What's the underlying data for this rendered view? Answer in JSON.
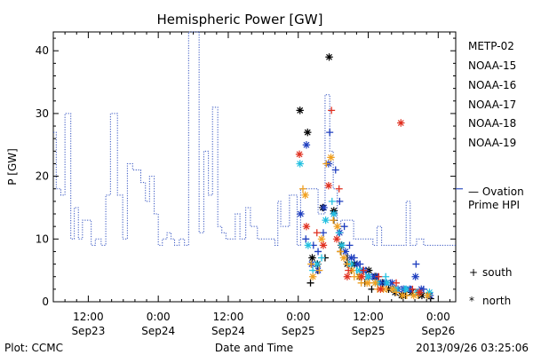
{
  "chart_data": {
    "type": "scatter",
    "title": "Hemispheric Power [GW]",
    "xlabel": "Date and Time",
    "ylabel": "P [GW]",
    "footer_left": "Plot: CCMC",
    "footer_right": "2013/09/26 03:25:06",
    "x_units": "hours since 2013-09-22 00:00 UT",
    "xlim": [
      6,
      75
    ],
    "ylim": [
      0,
      43
    ],
    "y_ticks": [
      0,
      10,
      20,
      30,
      40
    ],
    "x_ticks": [
      {
        "x": 12,
        "time": "12:00",
        "date": "Sep23"
      },
      {
        "x": 24,
        "time": "0:00",
        "date": "Sep24"
      },
      {
        "x": 36,
        "time": "12:00",
        "date": "Sep24"
      },
      {
        "x": 48,
        "time": "0:00",
        "date": "Sep25"
      },
      {
        "x": 60,
        "time": "12:00",
        "date": "Sep25"
      },
      {
        "x": 72,
        "time": "0:00",
        "date": "Sep26"
      }
    ],
    "legend": {
      "placement": "right",
      "satellites": [
        {
          "name": "METP-02",
          "color": "#000000"
        },
        {
          "name": "NOAA-15",
          "color": "#1f3fbf"
        },
        {
          "name": "NOAA-16",
          "color": "#22c0e0"
        },
        {
          "name": "NOAA-17",
          "color": "#22d68a"
        },
        {
          "name": "NOAA-18",
          "color": "#f0a020"
        },
        {
          "name": "NOAA-19",
          "color": "#e03020"
        }
      ],
      "ovation": {
        "label_line1": "— Ovation",
        "label_line2": "Prime HPI",
        "value": 18,
        "color": "#3050c0"
      },
      "markers": [
        {
          "symbol": "+",
          "label": "south"
        },
        {
          "symbol": "*",
          "label": "north"
        }
      ]
    },
    "ovation_series": {
      "name": "Ovation Prime HPI",
      "points": [
        [
          6,
          27
        ],
        [
          6.5,
          18
        ],
        [
          7.3,
          17
        ],
        [
          8,
          30
        ],
        [
          9,
          10
        ],
        [
          9.6,
          15
        ],
        [
          10.3,
          10
        ],
        [
          11,
          13
        ],
        [
          12.5,
          9
        ],
        [
          13.2,
          10
        ],
        [
          14.2,
          9
        ],
        [
          15,
          17
        ],
        [
          15.8,
          30
        ],
        [
          17,
          17
        ],
        [
          17.9,
          10
        ],
        [
          18.7,
          22
        ],
        [
          19.6,
          21
        ],
        [
          21,
          19
        ],
        [
          21.8,
          16
        ],
        [
          22.5,
          20
        ],
        [
          23.3,
          14
        ],
        [
          24,
          9
        ],
        [
          24.7,
          10
        ],
        [
          25.5,
          11
        ],
        [
          26.2,
          10
        ],
        [
          26.8,
          9
        ],
        [
          27.6,
          10
        ],
        [
          28.5,
          9
        ],
        [
          29.2,
          43
        ],
        [
          31,
          11
        ],
        [
          31.8,
          24
        ],
        [
          32.6,
          17
        ],
        [
          33.3,
          31
        ],
        [
          34.2,
          12
        ],
        [
          34.9,
          11
        ],
        [
          35.6,
          10
        ],
        [
          37.2,
          14
        ],
        [
          38,
          10
        ],
        [
          39,
          15
        ],
        [
          39.8,
          12
        ],
        [
          41,
          10
        ],
        [
          43,
          10
        ],
        [
          44,
          9
        ],
        [
          44.5,
          16
        ],
        [
          45,
          12
        ],
        [
          46.5,
          17
        ],
        [
          47.8,
          9
        ],
        [
          48.4,
          18
        ],
        [
          51.4,
          14
        ],
        [
          52.6,
          33
        ],
        [
          53.4,
          24
        ],
        [
          54,
          18
        ],
        [
          54.7,
          11
        ],
        [
          55.3,
          13
        ],
        [
          57.5,
          10
        ],
        [
          60.8,
          9
        ],
        [
          61.5,
          12
        ],
        [
          62.3,
          9
        ],
        [
          66.5,
          16
        ],
        [
          67.2,
          9
        ],
        [
          68.3,
          10
        ],
        [
          69.5,
          9
        ],
        [
          75,
          9
        ]
      ]
    },
    "satellite_points": {
      "METP-02": {
        "south": [
          [
            50.1,
            3
          ],
          [
            51.3,
            5
          ],
          [
            52.6,
            7
          ],
          [
            54.1,
            13
          ],
          [
            55.3,
            8
          ],
          [
            56.4,
            7
          ],
          [
            57.1,
            5
          ],
          [
            58.5,
            4
          ],
          [
            59.4,
            3
          ],
          [
            60.6,
            2
          ],
          [
            62.5,
            3
          ],
          [
            64.3,
            2
          ],
          [
            66.4,
            1
          ],
          [
            68.6,
            1
          ],
          [
            70.7,
            0.5
          ]
        ],
        "north": [
          [
            48.3,
            30.5
          ],
          [
            49.6,
            27
          ],
          [
            50.4,
            7
          ],
          [
            51.3,
            6
          ],
          [
            52.2,
            15
          ],
          [
            53.3,
            39
          ],
          [
            54.1,
            14.5
          ],
          [
            55.4,
            9
          ],
          [
            56.4,
            6
          ],
          [
            57.6,
            6
          ],
          [
            58.5,
            4
          ],
          [
            60.1,
            5
          ],
          [
            61.3,
            4
          ],
          [
            62.4,
            3
          ],
          [
            63.5,
            2
          ],
          [
            64.6,
            1.5
          ],
          [
            65.7,
            1
          ],
          [
            67.4,
            1.5
          ],
          [
            69.2,
            1
          ],
          [
            70.5,
            1
          ]
        ]
      },
      "NOAA-15": {
        "south": [
          [
            49.3,
            10
          ],
          [
            50.6,
            9
          ],
          [
            51.4,
            8
          ],
          [
            52.3,
            11
          ],
          [
            53.4,
            27
          ],
          [
            54.4,
            21
          ],
          [
            55.1,
            16
          ],
          [
            55.9,
            12
          ],
          [
            56.8,
            9
          ],
          [
            57.6,
            7
          ],
          [
            58.6,
            6
          ],
          [
            59.6,
            5
          ],
          [
            60.7,
            4
          ],
          [
            61.6,
            4
          ],
          [
            62.7,
            3
          ],
          [
            63.8,
            3
          ],
          [
            64.7,
            2
          ],
          [
            65.8,
            2
          ],
          [
            67.3,
            2
          ],
          [
            68.2,
            6
          ],
          [
            69.5,
            2
          ]
        ],
        "north": [
          [
            48.4,
            14
          ],
          [
            49.4,
            25
          ],
          [
            50.3,
            6
          ],
          [
            51.4,
            5
          ],
          [
            52.4,
            15
          ],
          [
            53.2,
            22
          ],
          [
            54.1,
            14
          ],
          [
            55.1,
            11
          ],
          [
            56.1,
            8
          ],
          [
            57.1,
            7
          ],
          [
            58.1,
            6
          ],
          [
            59.1,
            5
          ],
          [
            60.1,
            4
          ],
          [
            61.1,
            4
          ],
          [
            62.1,
            3
          ],
          [
            63.1,
            3
          ],
          [
            64.1,
            3
          ],
          [
            65.1,
            2
          ],
          [
            66.1,
            2
          ],
          [
            67.1,
            2
          ],
          [
            68.1,
            4
          ],
          [
            69.1,
            2
          ],
          [
            70.6,
            1
          ]
        ]
      },
      "NOAA-16": {
        "south": [
          [
            50.5,
            5
          ],
          [
            52.0,
            7
          ],
          [
            53.8,
            16
          ],
          [
            55.0,
            11
          ],
          [
            56.6,
            6
          ],
          [
            58.0,
            5
          ],
          [
            59.6,
            4
          ],
          [
            61.2,
            3
          ],
          [
            63.0,
            4
          ],
          [
            64.6,
            2
          ],
          [
            66.3,
            2
          ],
          [
            68.2,
            1.5
          ],
          [
            70.2,
            1
          ]
        ],
        "north": [
          [
            48.3,
            22
          ],
          [
            49.7,
            9
          ],
          [
            51.2,
            6
          ],
          [
            52.7,
            13
          ],
          [
            54.1,
            14
          ],
          [
            55.5,
            9
          ],
          [
            57.1,
            6
          ],
          [
            58.5,
            5
          ],
          [
            60.0,
            4
          ],
          [
            61.6,
            3
          ],
          [
            63.2,
            3
          ],
          [
            64.8,
            2
          ],
          [
            66.5,
            2
          ],
          [
            68.4,
            1.5
          ],
          [
            70.5,
            1.5
          ]
        ]
      },
      "NOAA-17": {
        "south": [],
        "north": []
      },
      "NOAA-18": {
        "south": [
          [
            48.8,
            18
          ],
          [
            50.2,
            6
          ],
          [
            51.6,
            5
          ],
          [
            52.8,
            22
          ],
          [
            54.0,
            13
          ],
          [
            55.2,
            8
          ],
          [
            56.4,
            6
          ],
          [
            57.6,
            4
          ],
          [
            58.8,
            3
          ],
          [
            60.2,
            3
          ],
          [
            61.6,
            2
          ],
          [
            63.2,
            2
          ],
          [
            64.8,
            1.5
          ],
          [
            66.6,
            1
          ],
          [
            68.5,
            1
          ]
        ],
        "north": [
          [
            49.2,
            17
          ],
          [
            50.5,
            4
          ],
          [
            52.0,
            10
          ],
          [
            53.6,
            23
          ],
          [
            54.7,
            12
          ],
          [
            55.8,
            7
          ],
          [
            57.2,
            5
          ],
          [
            58.4,
            4
          ],
          [
            59.8,
            3
          ],
          [
            61.2,
            3
          ],
          [
            62.6,
            2
          ],
          [
            64.2,
            2
          ],
          [
            65.9,
            1
          ],
          [
            67.8,
            1
          ],
          [
            70.2,
            1
          ]
        ]
      },
      "NOAA-19": {
        "south": [
          [
            51.2,
            11
          ],
          [
            53.7,
            30.5
          ],
          [
            55.0,
            18
          ],
          [
            56.6,
            5
          ],
          [
            59.2,
            5
          ],
          [
            61.8,
            4
          ],
          [
            64.8,
            3
          ],
          [
            67.6,
            2
          ]
        ],
        "north": [
          [
            48.2,
            23.5
          ],
          [
            49.4,
            12
          ],
          [
            52.3,
            9
          ],
          [
            53.2,
            18.5
          ],
          [
            54.6,
            10
          ],
          [
            56.4,
            4
          ],
          [
            58.9,
            4
          ],
          [
            62.1,
            2
          ],
          [
            65.6,
            28.5
          ],
          [
            68.8,
            1.5
          ]
        ]
      }
    }
  }
}
